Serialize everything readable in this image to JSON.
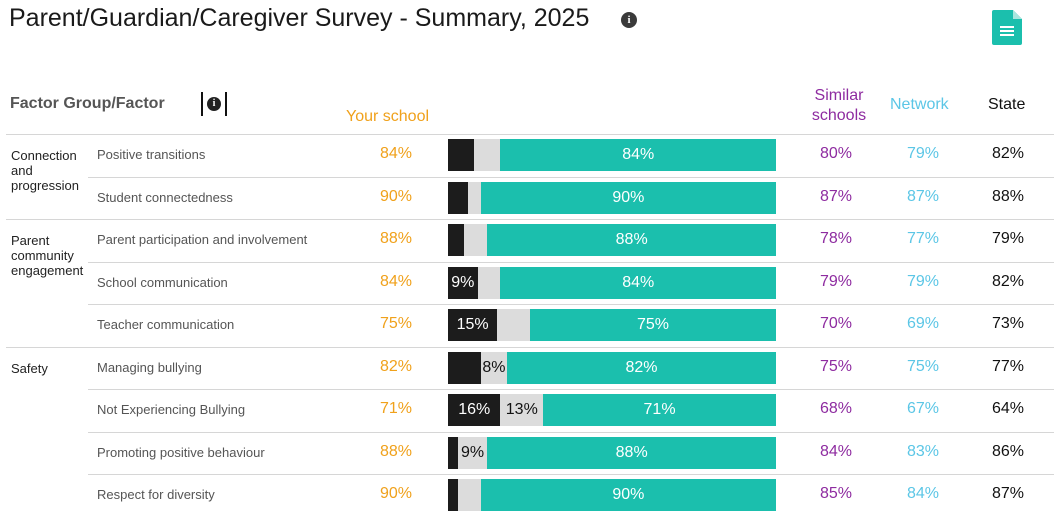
{
  "title": "Parent/Guardian/Caregiver Survey - Summary, 2025",
  "colors": {
    "your_school": "#f0a11b",
    "similar": "#8e2ba0",
    "network": "#5bc6e6",
    "state": "#111111",
    "negative": "#1c1c1c",
    "neutral": "#dcdcdc",
    "positive": "#1bbfad"
  },
  "headers": {
    "factor": "Factor Group/Factor",
    "your_school": "Your school",
    "similar": "Similar schools",
    "network": "Network",
    "state": "State"
  },
  "rows": [
    {
      "group": "Connection and progression",
      "factor": "Positive transitions",
      "school": "84%",
      "neg": 8,
      "neu": 8,
      "pos": 84,
      "neg_label": "",
      "neu_label": "",
      "pos_label": "84%",
      "similar": "80%",
      "network": "79%",
      "state": "82%"
    },
    {
      "group": "",
      "factor": "Student connectedness",
      "school": "90%",
      "neg": 6,
      "neu": 4,
      "pos": 90,
      "neg_label": "",
      "neu_label": "",
      "pos_label": "90%",
      "similar": "87%",
      "network": "87%",
      "state": "88%"
    },
    {
      "group": "Parent community engagement",
      "factor": "Parent participation and involvement",
      "school": "88%",
      "neg": 5,
      "neu": 7,
      "pos": 88,
      "neg_label": "",
      "neu_label": "",
      "pos_label": "88%",
      "similar": "78%",
      "network": "77%",
      "state": "79%"
    },
    {
      "group": "",
      "factor": "School communication",
      "school": "84%",
      "neg": 9,
      "neu": 7,
      "pos": 84,
      "neg_label": "9%",
      "neu_label": "",
      "pos_label": "84%",
      "similar": "79%",
      "network": "79%",
      "state": "82%"
    },
    {
      "group": "",
      "factor": "Teacher communication",
      "school": "75%",
      "neg": 15,
      "neu": 10,
      "pos": 75,
      "neg_label": "15%",
      "neu_label": "",
      "pos_label": "75%",
      "similar": "70%",
      "network": "69%",
      "state": "73%"
    },
    {
      "group": "Safety",
      "factor": "Managing bullying",
      "school": "82%",
      "neg": 10,
      "neu": 8,
      "pos": 82,
      "neg_label": "",
      "neu_label": "8%",
      "pos_label": "82%",
      "similar": "75%",
      "network": "75%",
      "state": "77%"
    },
    {
      "group": "",
      "factor": "Not Experiencing Bullying",
      "school": "71%",
      "neg": 16,
      "neu": 13,
      "pos": 71,
      "neg_label": "16%",
      "neu_label": "13%",
      "pos_label": "71%",
      "similar": "68%",
      "network": "67%",
      "state": "64%"
    },
    {
      "group": "",
      "factor": "Promoting positive behaviour",
      "school": "88%",
      "neg": 3,
      "neu": 9,
      "pos": 88,
      "neg_label": "",
      "neu_label": "9%",
      "pos_label": "88%",
      "similar": "84%",
      "network": "83%",
      "state": "86%"
    },
    {
      "group": "",
      "factor": "Respect for diversity",
      "school": "90%",
      "neg": 3,
      "neu": 7,
      "pos": 90,
      "neg_label": "",
      "neu_label": "",
      "pos_label": "90%",
      "similar": "85%",
      "network": "84%",
      "state": "87%"
    }
  ]
}
